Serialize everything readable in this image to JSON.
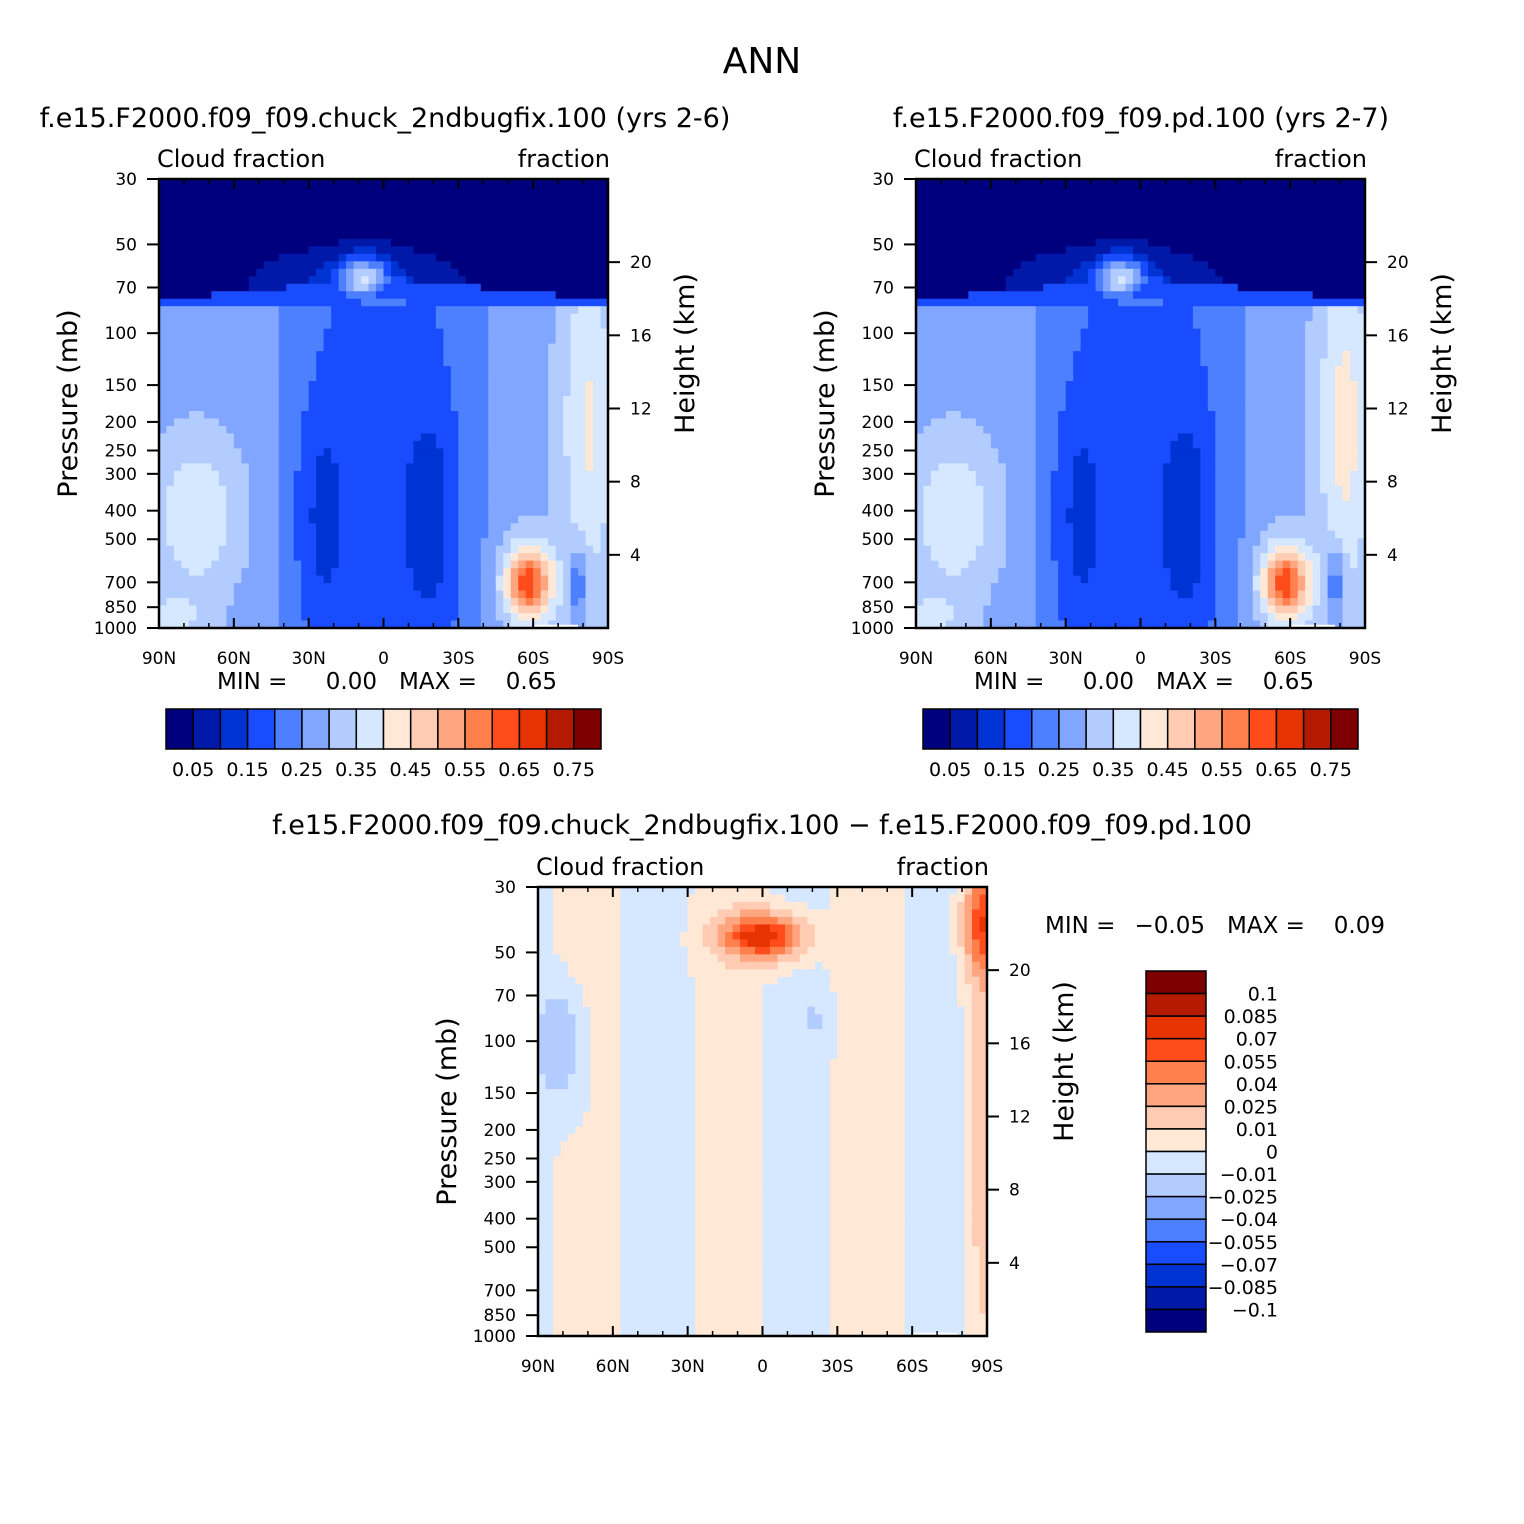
{
  "figure": {
    "title": "ANN"
  },
  "colors": {
    "main_scale": [
      "#00007f",
      "#0019a8",
      "#0033d3",
      "#1a4cff",
      "#4d80ff",
      "#80a6ff",
      "#b3ccff",
      "#d6e8ff",
      "#ffe8d6",
      "#ffccb3",
      "#ffa680",
      "#ff804d",
      "#ff4c1a",
      "#e63300",
      "#b31a00",
      "#7f0000"
    ],
    "diff_scale": [
      "#00007f",
      "#0019a8",
      "#0033d3",
      "#1a4cff",
      "#4d80ff",
      "#80a6ff",
      "#b3ccff",
      "#d6e8ff",
      "#ffe8d6",
      "#ffccb3",
      "#ffa680",
      "#ff804d",
      "#ff4c1a",
      "#e63300",
      "#b31a00",
      "#7f0000"
    ],
    "missing": "#ffffff"
  },
  "chart_data": [
    {
      "type": "heatmap",
      "id": "panel-test",
      "title": "f.e15.F2000.f09_f09.chuck_2ndbugfix.100 (yrs 2-6)",
      "left_label": "Cloud fraction",
      "right_label": "fraction",
      "xlabel": "",
      "ylabel": "Pressure (mb)",
      "ylabel_right": "Height (km)",
      "x_ticks": [
        "90N",
        "60N",
        "30N",
        "0",
        "30S",
        "60S",
        "90S"
      ],
      "x_tick_values": [
        90,
        60,
        30,
        0,
        -30,
        -60,
        -90
      ],
      "xlim": [
        90,
        -90
      ],
      "y_ticks": [
        "30",
        "50",
        "70",
        "100",
        "150",
        "200",
        "250",
        "300",
        "400",
        "500",
        "700",
        "850",
        "1000"
      ],
      "y_tick_values": [
        30,
        50,
        70,
        100,
        150,
        200,
        250,
        300,
        400,
        500,
        700,
        850,
        1000
      ],
      "ylim": [
        30,
        1000
      ],
      "y_right_ticks": [
        "20",
        "16",
        "12",
        "8",
        "4"
      ],
      "y_right_values": [
        20,
        16,
        12,
        8,
        4
      ],
      "stats": {
        "min_label": "MIN =",
        "min_value": "0.00",
        "max_label": "MAX =",
        "max_value": "0.65"
      },
      "colorbar": {
        "orientation": "horizontal",
        "labels": [
          "0.05",
          "0.15",
          "0.25",
          "0.35",
          "0.45",
          "0.55",
          "0.65",
          "0.75"
        ],
        "levels": [
          0.05,
          0.1,
          0.15,
          0.2,
          0.25,
          0.3,
          0.35,
          0.4,
          0.45,
          0.5,
          0.55,
          0.6,
          0.65,
          0.7,
          0.75
        ]
      },
      "field": "cloud",
      "variant": 0
    },
    {
      "type": "heatmap",
      "id": "panel-control",
      "title": "f.e15.F2000.f09_f09.pd.100 (yrs 2-7)",
      "left_label": "Cloud fraction",
      "right_label": "fraction",
      "xlabel": "",
      "ylabel": "Pressure (mb)",
      "ylabel_right": "Height (km)",
      "x_ticks": [
        "90N",
        "60N",
        "30N",
        "0",
        "30S",
        "60S",
        "90S"
      ],
      "x_tick_values": [
        90,
        60,
        30,
        0,
        -30,
        -60,
        -90
      ],
      "xlim": [
        90,
        -90
      ],
      "y_ticks": [
        "30",
        "50",
        "70",
        "100",
        "150",
        "200",
        "250",
        "300",
        "400",
        "500",
        "700",
        "850",
        "1000"
      ],
      "y_tick_values": [
        30,
        50,
        70,
        100,
        150,
        200,
        250,
        300,
        400,
        500,
        700,
        850,
        1000
      ],
      "ylim": [
        30,
        1000
      ],
      "y_right_ticks": [
        "20",
        "16",
        "12",
        "8",
        "4"
      ],
      "y_right_values": [
        20,
        16,
        12,
        8,
        4
      ],
      "stats": {
        "min_label": "MIN =",
        "min_value": "0.00",
        "max_label": "MAX =",
        "max_value": "0.65"
      },
      "colorbar": {
        "orientation": "horizontal",
        "labels": [
          "0.05",
          "0.15",
          "0.25",
          "0.35",
          "0.45",
          "0.55",
          "0.65",
          "0.75"
        ],
        "levels": [
          0.05,
          0.1,
          0.15,
          0.2,
          0.25,
          0.3,
          0.35,
          0.4,
          0.45,
          0.5,
          0.55,
          0.6,
          0.65,
          0.7,
          0.75
        ]
      },
      "field": "cloud",
      "variant": 1
    },
    {
      "type": "heatmap",
      "id": "panel-diff",
      "title": "f.e15.F2000.f09_f09.chuck_2ndbugfix.100 − f.e15.F2000.f09_f09.pd.100",
      "left_label": "Cloud fraction",
      "right_label": "fraction",
      "xlabel": "",
      "ylabel": "Pressure (mb)",
      "ylabel_right": "Height (km)",
      "x_ticks": [
        "90N",
        "60N",
        "30N",
        "0",
        "30S",
        "60S",
        "90S"
      ],
      "x_tick_values": [
        90,
        60,
        30,
        0,
        -30,
        -60,
        -90
      ],
      "xlim": [
        90,
        -90
      ],
      "y_ticks": [
        "30",
        "50",
        "70",
        "100",
        "150",
        "200",
        "250",
        "300",
        "400",
        "500",
        "700",
        "850",
        "1000"
      ],
      "y_tick_values": [
        30,
        50,
        70,
        100,
        150,
        200,
        250,
        300,
        400,
        500,
        700,
        850,
        1000
      ],
      "ylim": [
        30,
        1000
      ],
      "y_right_ticks": [
        "20",
        "16",
        "12",
        "8",
        "4"
      ],
      "y_right_values": [
        20,
        16,
        12,
        8,
        4
      ],
      "stats": {
        "min_label": "MIN =",
        "min_value": "−0.05",
        "max_label": "MAX =",
        "max_value": "0.09"
      },
      "colorbar": {
        "orientation": "vertical",
        "labels": [
          "0.1",
          "0.085",
          "0.07",
          "0.055",
          "0.04",
          "0.025",
          "0.01",
          "0",
          "−0.01",
          "−0.025",
          "−0.04",
          "−0.055",
          "−0.07",
          "−0.085",
          "−0.1"
        ],
        "levels": [
          -0.1,
          -0.085,
          -0.07,
          -0.055,
          -0.04,
          -0.025,
          -0.01,
          0,
          0.01,
          0.025,
          0.04,
          0.055,
          0.07,
          0.085,
          0.1
        ]
      },
      "field": "diff",
      "variant": 0
    }
  ]
}
